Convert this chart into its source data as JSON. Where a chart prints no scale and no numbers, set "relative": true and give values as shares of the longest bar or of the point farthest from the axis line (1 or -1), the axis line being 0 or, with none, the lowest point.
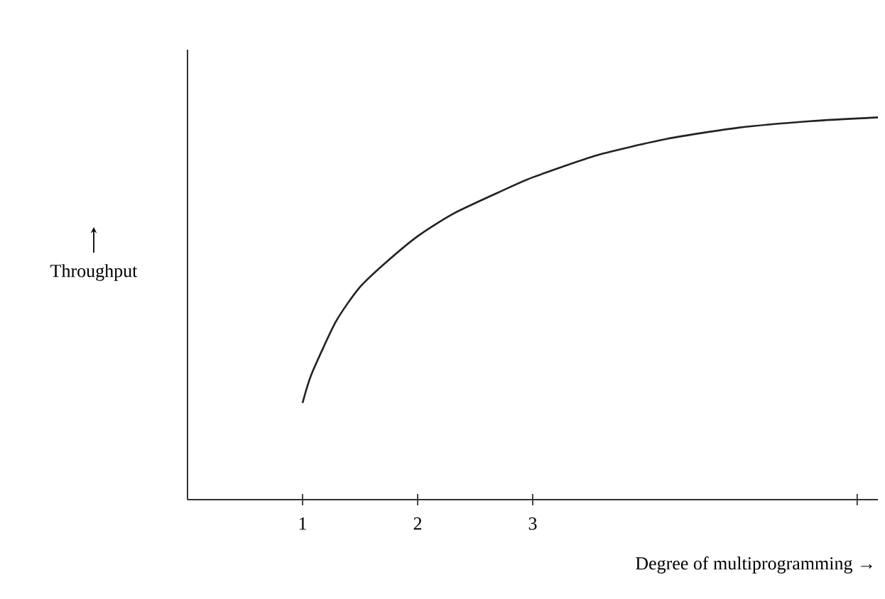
{
  "chart_data": {
    "type": "line",
    "relative": true,
    "xlabel": "Degree of multiprogramming →",
    "ylabel": "Throughput",
    "xlim": [
      0,
      6
    ],
    "xticks": [
      1,
      2,
      3,
      {
        "value": 5.82,
        "label": null
      }
    ],
    "x": [
      1,
      1.08,
      1.29,
      1.49,
      1.7,
      2,
      2.31,
      2.72,
      3,
      3.56,
      4.17,
      4.79,
      5.41,
      6
    ],
    "series": [
      {
        "color": "#222222",
        "values": [
          0.253,
          0.33,
          0.466,
          0.553,
          0.614,
          0.689,
          0.748,
          0.806,
          0.843,
          0.901,
          0.944,
          0.973,
          0.99,
          1
        ]
      }
    ],
    "marker": "none",
    "line_style": "solid",
    "grid": false
  }
}
